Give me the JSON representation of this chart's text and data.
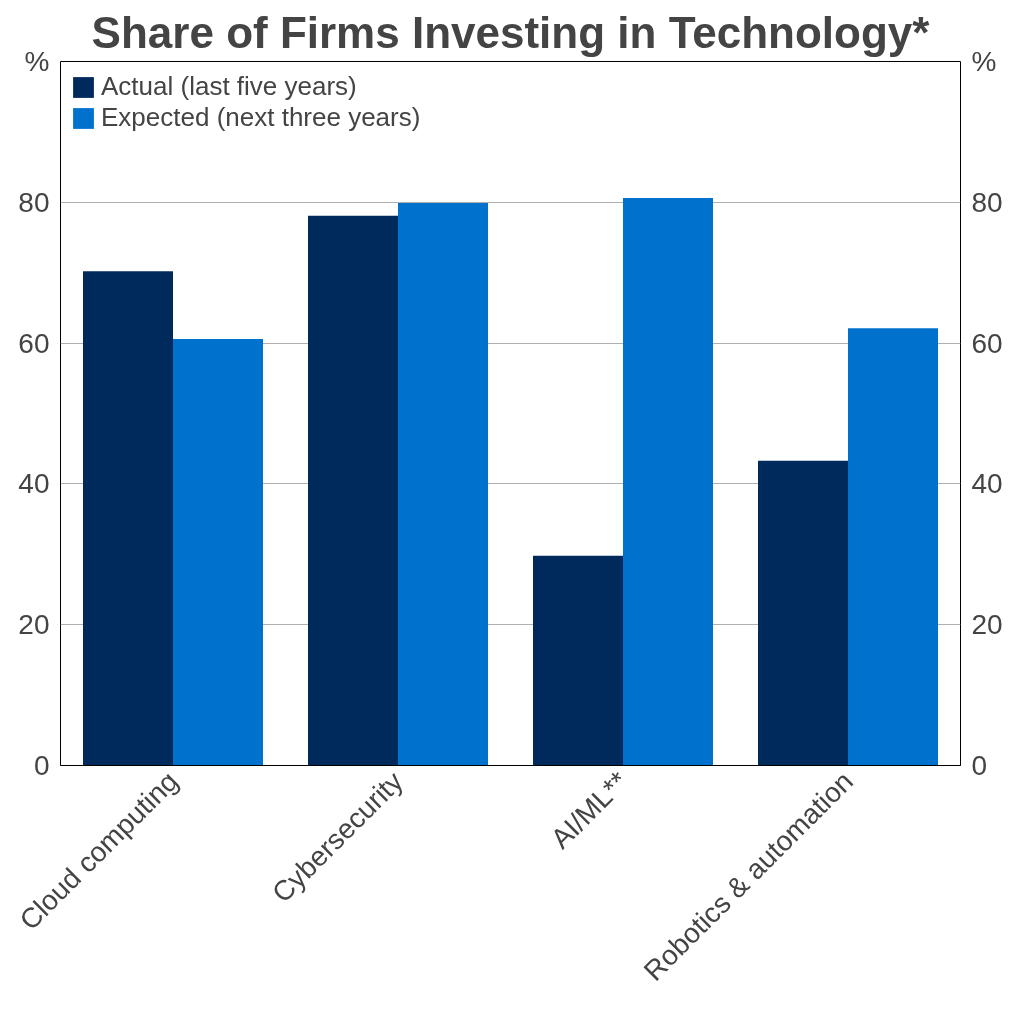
{
  "chart_data": {
    "type": "bar",
    "title": "Share of Firms Investing in Technology*",
    "categories": [
      "Cloud computing",
      "Cybersecurity",
      "AI/ML**",
      "Robotics & automation"
    ],
    "series": [
      {
        "name": "Actual (last five years)",
        "color": "#002a5c",
        "values": [
          70.2,
          78.1,
          29.8,
          43.3
        ]
      },
      {
        "name": "Expected (next three years)",
        "color": "#0072ce",
        "values": [
          60.6,
          79.9,
          80.6,
          62.1
        ]
      }
    ],
    "ylim": [
      0,
      100
    ],
    "yticks": [
      0,
      20,
      40,
      60,
      80,
      {
        "value": 100,
        "label": "%"
      }
    ],
    "y2lim": [
      0,
      100
    ],
    "y2ticks": [
      0,
      20,
      40,
      60,
      80,
      {
        "value": 100,
        "label": "%"
      }
    ],
    "grid": "y",
    "legend": "top left"
  }
}
